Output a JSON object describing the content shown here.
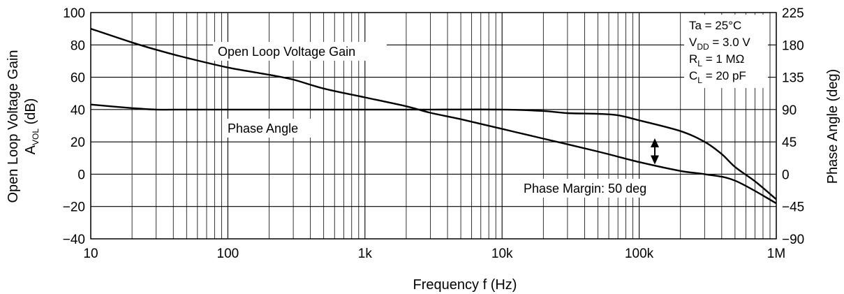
{
  "chart_data": {
    "type": "line",
    "title": "",
    "xlabel": "Frequency  f  (Hz)",
    "ylabel_left": "Open Loop Voltage Gain",
    "ylabel_left_symbol": {
      "main": "A",
      "sub": "VOL",
      "unit": " (dB)"
    },
    "ylabel_right": "Phase Angle (deg)",
    "x_scale": "log",
    "xlim": [
      10,
      1000000
    ],
    "x_ticks": [
      10,
      100,
      1000,
      10000,
      100000,
      1000000
    ],
    "x_tick_labels": [
      "10",
      "100",
      "1k",
      "10k",
      "100k",
      "1M"
    ],
    "ylim_left": [
      -40,
      100
    ],
    "y_ticks_left": [
      -40,
      -20,
      0,
      20,
      40,
      60,
      80,
      100
    ],
    "y_tick_labels_left": [
      "−40",
      "−20",
      "0",
      "20",
      "40",
      "60",
      "80",
      "100"
    ],
    "ylim_right": [
      -90,
      225
    ],
    "y_ticks_right": [
      -90,
      -45,
      0,
      45,
      90,
      135,
      180,
      225
    ],
    "y_tick_labels_right": [
      "−90",
      "−45",
      "0",
      "45",
      "90",
      "135",
      "180",
      "225"
    ],
    "grid": true,
    "series": [
      {
        "name": "Open Loop Voltage Gain",
        "axis": "left",
        "x": [
          10,
          20,
          30,
          50,
          100,
          200,
          300,
          500,
          1000,
          2000,
          3000,
          5000,
          10000,
          20000,
          50000,
          100000,
          200000,
          300000,
          500000,
          1000000
        ],
        "y": [
          90,
          81.5,
          77,
          72,
          66,
          61.5,
          58.5,
          53,
          47.5,
          42,
          38,
          34,
          28,
          22,
          14,
          7.5,
          2,
          0,
          -4,
          -18
        ]
      },
      {
        "name": "Phase Angle",
        "axis": "right",
        "x": [
          10,
          20,
          30,
          50,
          100,
          300,
          1000,
          3000,
          10000,
          20000,
          30000,
          50000,
          70000,
          100000,
          200000,
          300000,
          400000,
          500000,
          700000,
          1000000
        ],
        "y": [
          97,
          92,
          90,
          90,
          90,
          90,
          90,
          90,
          90,
          88,
          85,
          84,
          82,
          75,
          60,
          45,
          28,
          10,
          -10,
          -35
        ]
      }
    ],
    "annotations": {
      "phase_margin": {
        "label": "Phase Margin: 50 deg",
        "x": 130000,
        "gain_db": 6,
        "phase_deg": 50
      }
    },
    "conditions": [
      {
        "main": "Ta = 25°C",
        "sub": "",
        "rest": ""
      },
      {
        "main": "V",
        "sub": "DD",
        "rest": " = 3.0 V"
      },
      {
        "main": "R",
        "sub": "L",
        "rest": " = 1 MΩ"
      },
      {
        "main": "C",
        "sub": "L",
        "rest": " = 20 pF"
      }
    ]
  }
}
